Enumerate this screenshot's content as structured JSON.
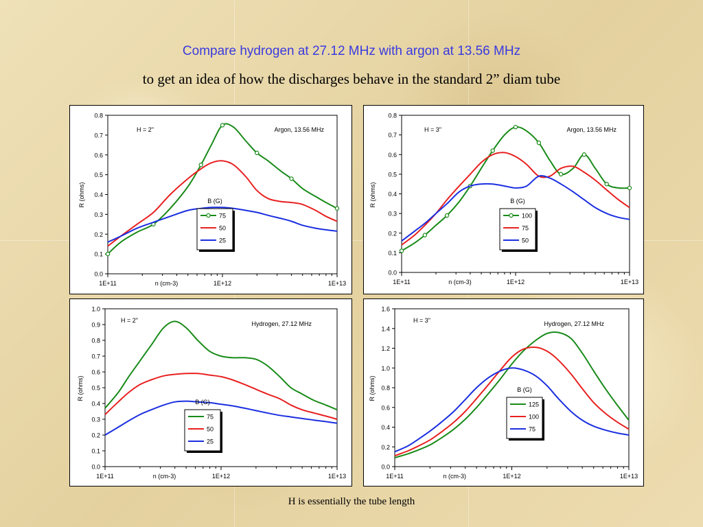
{
  "header": {
    "title": "Compare hydrogen at 27.12 MHz with argon at 13.56 MHz",
    "subtitle": "to get an idea of how the discharges behave in the standard 2” diam tube"
  },
  "footer": {
    "caption": "H is essentially the tube length"
  },
  "colors": {
    "green": "#188a18",
    "red": "#e82020",
    "blue": "#1a2ee0"
  },
  "chart_data": [
    {
      "type": "line",
      "xscale": "log",
      "xlim": [
        100000000000.0,
        10000000000000.0
      ],
      "ylim": [
        0,
        0.8
      ],
      "yticks": [
        "0.0",
        "0.1",
        "0.2",
        "0.3",
        "0.4",
        "0.5",
        "0.6",
        "0.7",
        "0.8"
      ],
      "xticks": [
        "1E+11",
        "1E+12",
        "1E+13"
      ],
      "xlabel": "n (cm-3)",
      "ylabel": "R (ohms)",
      "annotation_left": "H = 2\"",
      "annotation_right": "Argon, 13.56 MHz",
      "legend_title": "B (G)",
      "legend_position": "center-bottom",
      "series": [
        {
          "name": "75",
          "color": "green",
          "markers": true,
          "x": [
            100000000000.0,
            130000000000.0,
            180000000000.0,
            250000000000.0,
            350000000000.0,
            500000000000.0,
            650000000000.0,
            800000000000.0,
            1000000000000.0,
            1250000000000.0,
            1600000000000.0,
            2000000000000.0,
            2500000000000.0,
            3200000000000.0,
            4000000000000.0,
            5000000000000.0,
            6500000000000.0,
            8000000000000.0,
            10000000000000.0
          ],
          "y": [
            0.1,
            0.16,
            0.21,
            0.25,
            0.33,
            0.44,
            0.55,
            0.65,
            0.75,
            0.74,
            0.67,
            0.61,
            0.57,
            0.52,
            0.48,
            0.43,
            0.39,
            0.36,
            0.33
          ],
          "marker_idx": [
            0,
            3,
            6,
            8,
            11,
            14,
            18
          ]
        },
        {
          "name": "50",
          "color": "red",
          "markers": false,
          "x": [
            100000000000.0,
            130000000000.0,
            180000000000.0,
            250000000000.0,
            350000000000.0,
            500000000000.0,
            650000000000.0,
            800000000000.0,
            1000000000000.0,
            1250000000000.0,
            1600000000000.0,
            2000000000000.0,
            2500000000000.0,
            3200000000000.0,
            4000000000000.0,
            5000000000000.0,
            6500000000000.0,
            8000000000000.0,
            10000000000000.0
          ],
          "y": [
            0.14,
            0.19,
            0.25,
            0.31,
            0.4,
            0.48,
            0.53,
            0.56,
            0.57,
            0.55,
            0.49,
            0.42,
            0.38,
            0.365,
            0.36,
            0.35,
            0.32,
            0.29,
            0.265
          ]
        },
        {
          "name": "25",
          "color": "blue",
          "markers": false,
          "x": [
            100000000000.0,
            130000000000.0,
            180000000000.0,
            250000000000.0,
            350000000000.0,
            500000000000.0,
            650000000000.0,
            800000000000.0,
            1000000000000.0,
            1250000000000.0,
            1600000000000.0,
            2000000000000.0,
            2500000000000.0,
            3200000000000.0,
            4000000000000.0,
            5000000000000.0,
            6500000000000.0,
            8000000000000.0,
            10000000000000.0
          ],
          "y": [
            0.16,
            0.19,
            0.23,
            0.26,
            0.29,
            0.32,
            0.33,
            0.335,
            0.335,
            0.33,
            0.32,
            0.31,
            0.295,
            0.28,
            0.265,
            0.245,
            0.23,
            0.222,
            0.215
          ]
        }
      ]
    },
    {
      "type": "line",
      "xscale": "log",
      "xlim": [
        100000000000.0,
        10000000000000.0
      ],
      "ylim": [
        0,
        0.8
      ],
      "yticks": [
        "0.0",
        "0.1",
        "0.2",
        "0.3",
        "0.4",
        "0.5",
        "0.6",
        "0.7",
        "0.8"
      ],
      "xticks": [
        "1E+11",
        "1E+12",
        "1E+13"
      ],
      "xlabel": "n (cm-3)",
      "ylabel": "R (ohms)",
      "annotation_left": "H = 3\"",
      "annotation_right": "Argon, 13.56 MHz",
      "legend_title": "B (G)",
      "legend_position": "center",
      "series": [
        {
          "name": "100",
          "color": "green",
          "markers": true,
          "x": [
            100000000000.0,
            130000000000.0,
            160000000000.0,
            200000000000.0,
            250000000000.0,
            320000000000.0,
            400000000000.0,
            500000000000.0,
            630000000000.0,
            800000000000.0,
            1000000000000.0,
            1250000000000.0,
            1600000000000.0,
            2000000000000.0,
            2500000000000.0,
            3200000000000.0,
            4000000000000.0,
            5000000000000.0,
            6300000000000.0,
            8000000000000.0,
            10000000000000.0
          ],
          "y": [
            0.11,
            0.15,
            0.19,
            0.24,
            0.29,
            0.36,
            0.44,
            0.53,
            0.62,
            0.7,
            0.74,
            0.72,
            0.66,
            0.57,
            0.5,
            0.53,
            0.6,
            0.53,
            0.45,
            0.43,
            0.43
          ],
          "marker_idx": [
            0,
            2,
            4,
            6,
            8,
            10,
            12,
            14,
            16,
            18,
            20
          ]
        },
        {
          "name": "75",
          "color": "red",
          "markers": false,
          "x": [
            100000000000.0,
            130000000000.0,
            160000000000.0,
            200000000000.0,
            250000000000.0,
            320000000000.0,
            400000000000.0,
            500000000000.0,
            630000000000.0,
            800000000000.0,
            1000000000000.0,
            1250000000000.0,
            1600000000000.0,
            2000000000000.0,
            2500000000000.0,
            3200000000000.0,
            4000000000000.0,
            5000000000000.0,
            6300000000000.0,
            8000000000000.0,
            10000000000000.0
          ],
          "y": [
            0.14,
            0.19,
            0.24,
            0.3,
            0.37,
            0.44,
            0.5,
            0.56,
            0.6,
            0.61,
            0.59,
            0.55,
            0.49,
            0.49,
            0.53,
            0.54,
            0.51,
            0.47,
            0.42,
            0.37,
            0.33
          ]
        },
        {
          "name": "50",
          "color": "blue",
          "markers": false,
          "x": [
            100000000000.0,
            130000000000.0,
            160000000000.0,
            200000000000.0,
            250000000000.0,
            320000000000.0,
            400000000000.0,
            500000000000.0,
            630000000000.0,
            800000000000.0,
            1000000000000.0,
            1250000000000.0,
            1600000000000.0,
            2000000000000.0,
            2500000000000.0,
            3200000000000.0,
            4000000000000.0,
            5000000000000.0,
            6300000000000.0,
            8000000000000.0,
            10000000000000.0
          ],
          "y": [
            0.16,
            0.21,
            0.25,
            0.3,
            0.35,
            0.41,
            0.44,
            0.45,
            0.45,
            0.44,
            0.43,
            0.44,
            0.49,
            0.48,
            0.45,
            0.41,
            0.37,
            0.33,
            0.3,
            0.28,
            0.27
          ]
        }
      ]
    },
    {
      "type": "line",
      "xscale": "log",
      "xlim": [
        100000000000.0,
        10000000000000.0
      ],
      "ylim": [
        0,
        1.0
      ],
      "yticks": [
        "0.0",
        "0.1",
        "0.2",
        "0.3",
        "0.4",
        "0.5",
        "0.6",
        "0.7",
        "0.8",
        "0.9",
        "1.0"
      ],
      "xticks": [
        "1E+11",
        "1E+12",
        "1E+13"
      ],
      "xlabel": "n (cm-3)",
      "ylabel": "R (ohms)",
      "annotation_left": "H = 2\"",
      "annotation_right": "Hydrogen, 27.12 MHz",
      "legend_title": "B (G)",
      "legend_position": "center-bottom",
      "series": [
        {
          "name": "75",
          "color": "green",
          "markers": false,
          "x": [
            100000000000.0,
            130000000000.0,
            160000000000.0,
            200000000000.0,
            250000000000.0,
            320000000000.0,
            400000000000.0,
            500000000000.0,
            630000000000.0,
            800000000000.0,
            1000000000000.0,
            1250000000000.0,
            1600000000000.0,
            2000000000000.0,
            2500000000000.0,
            3200000000000.0,
            4000000000000.0,
            5000000000000.0,
            6300000000000.0,
            8000000000000.0,
            10000000000000.0
          ],
          "y": [
            0.37,
            0.47,
            0.57,
            0.67,
            0.77,
            0.88,
            0.92,
            0.88,
            0.8,
            0.73,
            0.7,
            0.69,
            0.69,
            0.68,
            0.64,
            0.57,
            0.5,
            0.46,
            0.42,
            0.39,
            0.36
          ]
        },
        {
          "name": "50",
          "color": "red",
          "markers": false,
          "x": [
            100000000000.0,
            130000000000.0,
            160000000000.0,
            200000000000.0,
            250000000000.0,
            320000000000.0,
            400000000000.0,
            500000000000.0,
            630000000000.0,
            800000000000.0,
            1000000000000.0,
            1250000000000.0,
            1600000000000.0,
            2000000000000.0,
            2500000000000.0,
            3200000000000.0,
            4000000000000.0,
            5000000000000.0,
            6300000000000.0,
            8000000000000.0,
            10000000000000.0
          ],
          "y": [
            0.33,
            0.41,
            0.47,
            0.52,
            0.55,
            0.575,
            0.585,
            0.59,
            0.59,
            0.58,
            0.57,
            0.55,
            0.52,
            0.49,
            0.46,
            0.43,
            0.39,
            0.36,
            0.34,
            0.32,
            0.3
          ]
        },
        {
          "name": "25",
          "color": "blue",
          "markers": false,
          "x": [
            100000000000.0,
            130000000000.0,
            160000000000.0,
            200000000000.0,
            250000000000.0,
            320000000000.0,
            400000000000.0,
            500000000000.0,
            630000000000.0,
            800000000000.0,
            1000000000000.0,
            1250000000000.0,
            1600000000000.0,
            2000000000000.0,
            2500000000000.0,
            3200000000000.0,
            4000000000000.0,
            5000000000000.0,
            6300000000000.0,
            8000000000000.0,
            10000000000000.0
          ],
          "y": [
            0.2,
            0.25,
            0.29,
            0.33,
            0.36,
            0.39,
            0.41,
            0.415,
            0.41,
            0.405,
            0.395,
            0.385,
            0.37,
            0.355,
            0.34,
            0.325,
            0.315,
            0.305,
            0.295,
            0.285,
            0.275
          ]
        }
      ]
    },
    {
      "type": "line",
      "xscale": "log",
      "xlim": [
        100000000000.0,
        10000000000000.0
      ],
      "ylim": [
        0,
        1.6
      ],
      "yticks": [
        "0.0",
        "0.2",
        "0.4",
        "0.6",
        "0.8",
        "1.0",
        "1.2",
        "1.4",
        "1.6"
      ],
      "xticks": [
        "1E+11",
        "1E+12",
        "1E+13"
      ],
      "xlabel": "n (cm-3)",
      "ylabel": "R (ohms)",
      "annotation_left": "H = 3\"",
      "annotation_right": "Hydrogen, 27.12 MHz",
      "legend_title": "B (G)",
      "legend_position": "center-bottom",
      "series": [
        {
          "name": "125",
          "color": "green",
          "markers": false,
          "x": [
            100000000000.0,
            130000000000.0,
            160000000000.0,
            200000000000.0,
            250000000000.0,
            320000000000.0,
            400000000000.0,
            500000000000.0,
            630000000000.0,
            800000000000.0,
            1000000000000.0,
            1250000000000.0,
            1600000000000.0,
            2000000000000.0,
            2500000000000.0,
            3200000000000.0,
            4000000000000.0,
            5000000000000.0,
            6300000000000.0,
            8000000000000.0,
            10000000000000.0
          ],
          "y": [
            0.09,
            0.13,
            0.17,
            0.22,
            0.29,
            0.38,
            0.48,
            0.6,
            0.74,
            0.89,
            1.04,
            1.17,
            1.28,
            1.35,
            1.36,
            1.3,
            1.15,
            0.97,
            0.79,
            0.62,
            0.47
          ]
        },
        {
          "name": "100",
          "color": "red",
          "markers": false,
          "x": [
            100000000000.0,
            130000000000.0,
            160000000000.0,
            200000000000.0,
            250000000000.0,
            320000000000.0,
            400000000000.0,
            500000000000.0,
            630000000000.0,
            800000000000.0,
            1000000000000.0,
            1250000000000.0,
            1600000000000.0,
            2000000000000.0,
            2500000000000.0,
            3200000000000.0,
            4000000000000.0,
            5000000000000.0,
            6300000000000.0,
            8000000000000.0,
            10000000000000.0
          ],
          "y": [
            0.11,
            0.16,
            0.21,
            0.27,
            0.35,
            0.45,
            0.56,
            0.69,
            0.83,
            0.98,
            1.11,
            1.19,
            1.21,
            1.17,
            1.08,
            0.94,
            0.79,
            0.65,
            0.54,
            0.45,
            0.38
          ]
        },
        {
          "name": "75",
          "color": "blue",
          "markers": false,
          "x": [
            100000000000.0,
            130000000000.0,
            160000000000.0,
            200000000000.0,
            250000000000.0,
            320000000000.0,
            400000000000.0,
            500000000000.0,
            630000000000.0,
            800000000000.0,
            1000000000000.0,
            1250000000000.0,
            1600000000000.0,
            2000000000000.0,
            2500000000000.0,
            3200000000000.0,
            4000000000000.0,
            5000000000000.0,
            6300000000000.0,
            8000000000000.0,
            10000000000000.0
          ],
          "y": [
            0.15,
            0.21,
            0.28,
            0.36,
            0.45,
            0.56,
            0.68,
            0.8,
            0.9,
            0.97,
            1.0,
            0.98,
            0.92,
            0.82,
            0.69,
            0.56,
            0.47,
            0.41,
            0.37,
            0.34,
            0.32
          ]
        }
      ]
    }
  ]
}
